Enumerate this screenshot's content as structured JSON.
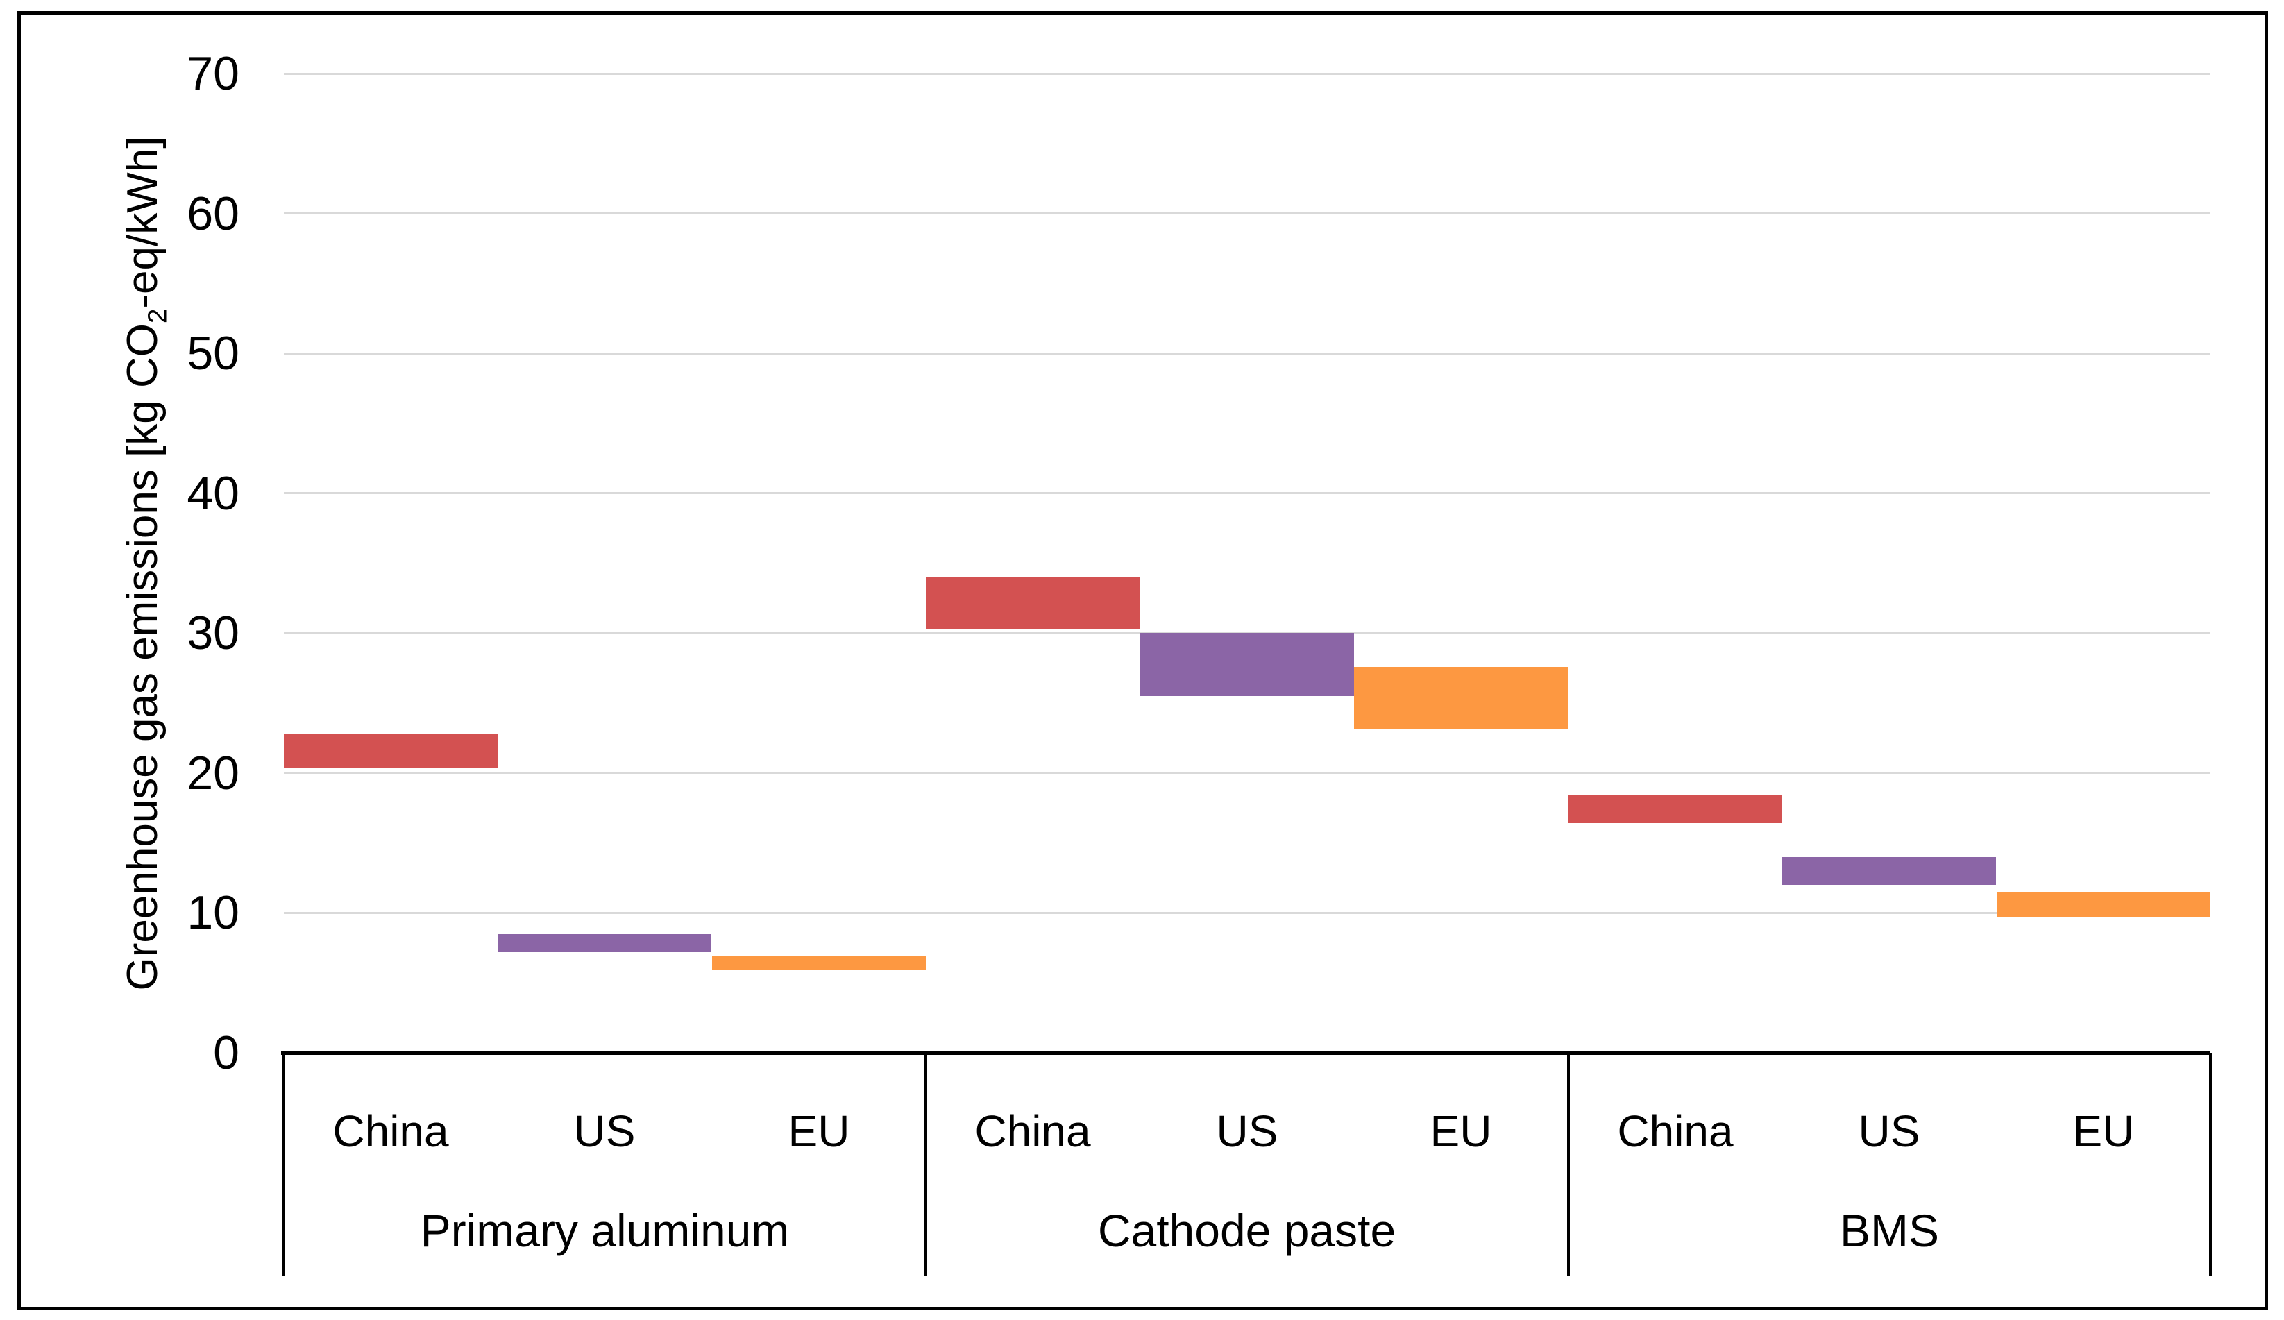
{
  "chart_data": {
    "type": "bar",
    "variant": "floating-range-columns",
    "title": "",
    "ylabel_parts": {
      "prefix": "Greenhouse gas emissions [kg CO",
      "subscript": "2",
      "suffix": "-eq/kWh]"
    },
    "ylabel_plain": "Greenhouse gas emissions [kg CO2-eq/kWh]",
    "ylim": [
      0,
      70
    ],
    "ytick_step": 10,
    "yticks": [
      0,
      10,
      20,
      30,
      40,
      50,
      60,
      70
    ],
    "grid": {
      "horizontal": true,
      "color": "#D9D9D9"
    },
    "legend_position": "none",
    "categories": [
      "China",
      "US",
      "EU"
    ],
    "groups": [
      {
        "label": "Primary aluminum",
        "bars": [
          {
            "category": "China",
            "low": 20.3,
            "high": 22.8
          },
          {
            "category": "US",
            "low": 7.2,
            "high": 8.5
          },
          {
            "category": "EU",
            "low": 5.9,
            "high": 6.9
          }
        ]
      },
      {
        "label": "Cathode paste",
        "bars": [
          {
            "category": "China",
            "low": 30.3,
            "high": 34.0
          },
          {
            "category": "US",
            "low": 25.5,
            "high": 30.0
          },
          {
            "category": "EU",
            "low": 23.2,
            "high": 27.6
          }
        ]
      },
      {
        "label": "BMS",
        "bars": [
          {
            "category": "China",
            "low": 16.4,
            "high": 18.4
          },
          {
            "category": "US",
            "low": 12.0,
            "high": 14.0
          },
          {
            "category": "EU",
            "low": 9.7,
            "high": 11.5
          }
        ]
      }
    ],
    "series_colors": {
      "China": "#D35151",
      "US": "#8B65A6",
      "EU": "#FD9841"
    },
    "axis_color": "#000000",
    "frame_color": "#000000",
    "background_color": "#FFFFFF"
  }
}
